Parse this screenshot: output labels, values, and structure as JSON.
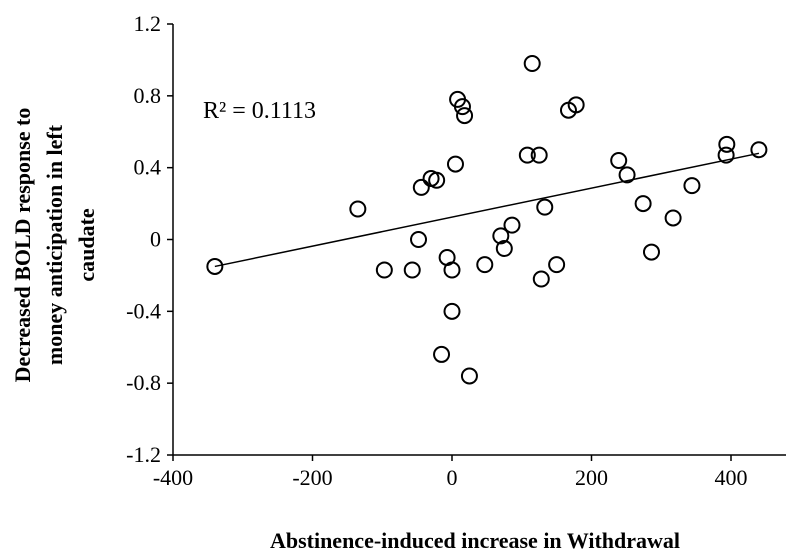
{
  "chart_data": {
    "type": "scatter",
    "title": "",
    "xlabel": "Abstinence-induced increase in Withdrawal",
    "ylabel_lines": [
      "Decreased BOLD response to",
      "money anticipation in left",
      "caudate"
    ],
    "annotation": "R² = 0.1113",
    "xlim": [
      -400,
      500
    ],
    "ylim": [
      -1.2,
      1.2
    ],
    "x_ticks": [
      -400,
      -200,
      0,
      200,
      400
    ],
    "x_tick_labels": [
      "-400",
      "-200",
      "0",
      "200",
      "400"
    ],
    "y_ticks": [
      -1.2,
      -0.8,
      -0.4,
      0,
      0.4,
      0.8,
      1.2
    ],
    "y_tick_labels": [
      "-1.2",
      "-0.8",
      "-0.4",
      "0",
      "0.4",
      "0.8",
      "1.2"
    ],
    "grid": false,
    "trendline": {
      "x": [
        -340,
        440
      ],
      "y": [
        -0.15,
        0.48
      ]
    },
    "points": [
      {
        "x": -340,
        "y": -0.15
      },
      {
        "x": -135,
        "y": 0.17
      },
      {
        "x": -97,
        "y": -0.17
      },
      {
        "x": -57,
        "y": -0.17
      },
      {
        "x": -48,
        "y": 0.0
      },
      {
        "x": -44,
        "y": 0.29
      },
      {
        "x": -30,
        "y": 0.34
      },
      {
        "x": -22,
        "y": 0.33
      },
      {
        "x": -15,
        "y": -0.64
      },
      {
        "x": -7,
        "y": -0.1
      },
      {
        "x": 0,
        "y": -0.4
      },
      {
        "x": 0,
        "y": -0.17
      },
      {
        "x": 5,
        "y": 0.42
      },
      {
        "x": 8,
        "y": 0.78
      },
      {
        "x": 15,
        "y": 0.74
      },
      {
        "x": 18,
        "y": 0.69
      },
      {
        "x": 25,
        "y": -0.76
      },
      {
        "x": 47,
        "y": -0.14
      },
      {
        "x": 70,
        "y": 0.02
      },
      {
        "x": 75,
        "y": -0.05
      },
      {
        "x": 86,
        "y": 0.08
      },
      {
        "x": 108,
        "y": 0.47
      },
      {
        "x": 115,
        "y": 0.98
      },
      {
        "x": 125,
        "y": 0.47
      },
      {
        "x": 128,
        "y": -0.22
      },
      {
        "x": 133,
        "y": 0.18
      },
      {
        "x": 150,
        "y": -0.14
      },
      {
        "x": 167,
        "y": 0.72
      },
      {
        "x": 178,
        "y": 0.75
      },
      {
        "x": 239,
        "y": 0.44
      },
      {
        "x": 251,
        "y": 0.36
      },
      {
        "x": 274,
        "y": 0.2
      },
      {
        "x": 286,
        "y": -0.07
      },
      {
        "x": 317,
        "y": 0.12
      },
      {
        "x": 344,
        "y": 0.3
      },
      {
        "x": 393,
        "y": 0.47
      },
      {
        "x": 394,
        "y": 0.53
      },
      {
        "x": 440,
        "y": 0.5
      }
    ]
  }
}
